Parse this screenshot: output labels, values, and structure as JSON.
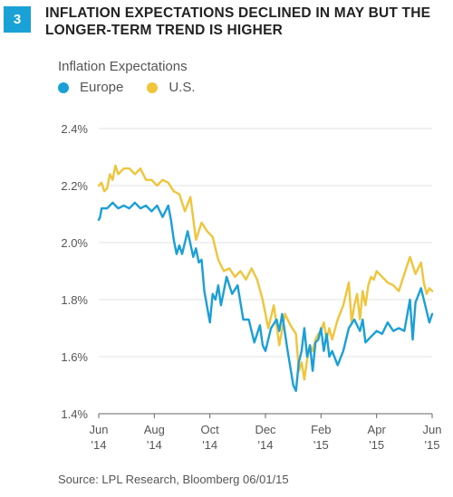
{
  "figure": {
    "number": "3",
    "title_line1": "INFLATION EXPECTATIONS DECLINED IN MAY BUT THE",
    "title_line2": "LONGER-TERM TREND IS HIGHER"
  },
  "source": "Source: LPL Research, Bloomberg   06/01/15",
  "colors": {
    "europe": "#1aa0d8",
    "us": "#f0c53a",
    "grid": "#e3e3e3",
    "axis": "#666666"
  },
  "chart_data": {
    "type": "line",
    "title": "Inflation Expectations",
    "ylim": [
      1.4,
      2.4
    ],
    "y_ticks": [
      {
        "value": 2.4,
        "label": "2.4%"
      },
      {
        "value": 2.2,
        "label": "2.2%"
      },
      {
        "value": 2.0,
        "label": "2.0%"
      },
      {
        "value": 1.8,
        "label": "1.8%"
      },
      {
        "value": 1.6,
        "label": "1.6%"
      },
      {
        "value": 1.4,
        "label": "1.4%"
      }
    ],
    "x_ticks": [
      {
        "pos": 0,
        "month": "Jun",
        "year": "'14"
      },
      {
        "pos": 2,
        "month": "Aug",
        "year": "'14"
      },
      {
        "pos": 4,
        "month": "Oct",
        "year": "'14"
      },
      {
        "pos": 6,
        "month": "Dec",
        "year": "'14"
      },
      {
        "pos": 8,
        "month": "Feb",
        "year": "'15"
      },
      {
        "pos": 10,
        "month": "Apr",
        "year": "'15"
      },
      {
        "pos": 12,
        "month": "Jun",
        "year": "'15"
      }
    ],
    "series": [
      {
        "name": "Europe",
        "color": "#1aa0d8",
        "x": [
          0,
          0.05,
          0.1,
          0.3,
          0.5,
          0.7,
          0.9,
          1.1,
          1.3,
          1.5,
          1.7,
          1.9,
          2.1,
          2.3,
          2.5,
          2.6,
          2.7,
          2.8,
          2.9,
          3.0,
          3.2,
          3.4,
          3.5,
          3.6,
          3.7,
          3.8,
          4.0,
          4.1,
          4.2,
          4.3,
          4.4,
          4.6,
          4.8,
          5.0,
          5.2,
          5.4,
          5.6,
          5.8,
          5.9,
          6.0,
          6.2,
          6.4,
          6.5,
          6.6,
          6.8,
          7.0,
          7.1,
          7.2,
          7.3,
          7.4,
          7.5,
          7.6,
          7.7,
          7.8,
          7.9,
          8.0,
          8.1,
          8.2,
          8.3,
          8.4,
          8.6,
          8.8,
          9.0,
          9.2,
          9.4,
          9.5,
          9.6,
          9.8,
          10.0,
          10.2,
          10.4,
          10.6,
          10.8,
          11.0,
          11.2,
          11.3,
          11.4,
          11.6,
          11.8,
          11.9,
          12.0
        ],
        "y": [
          2.08,
          2.09,
          2.12,
          2.12,
          2.14,
          2.12,
          2.13,
          2.12,
          2.14,
          2.12,
          2.13,
          2.11,
          2.13,
          2.09,
          2.13,
          2.08,
          2.01,
          1.96,
          1.99,
          1.96,
          2.04,
          1.95,
          1.98,
          1.93,
          1.94,
          1.83,
          1.72,
          1.82,
          1.8,
          1.85,
          1.78,
          1.88,
          1.82,
          1.85,
          1.73,
          1.73,
          1.65,
          1.71,
          1.64,
          1.62,
          1.7,
          1.73,
          1.69,
          1.75,
          1.62,
          1.5,
          1.48,
          1.58,
          1.62,
          1.7,
          1.6,
          1.64,
          1.55,
          1.65,
          1.66,
          1.7,
          1.62,
          1.68,
          1.6,
          1.62,
          1.57,
          1.62,
          1.7,
          1.73,
          1.69,
          1.73,
          1.65,
          1.67,
          1.69,
          1.68,
          1.72,
          1.69,
          1.7,
          1.69,
          1.8,
          1.66,
          1.79,
          1.84,
          1.76,
          1.72,
          1.75
        ]
      },
      {
        "name": "U.S.",
        "color": "#f0c53a",
        "x": [
          0,
          0.1,
          0.2,
          0.3,
          0.4,
          0.5,
          0.6,
          0.7,
          0.9,
          1.1,
          1.3,
          1.5,
          1.7,
          1.9,
          2.1,
          2.3,
          2.5,
          2.7,
          2.9,
          3.1,
          3.3,
          3.5,
          3.7,
          3.9,
          4.1,
          4.3,
          4.5,
          4.7,
          4.9,
          5.1,
          5.3,
          5.5,
          5.7,
          5.9,
          6.1,
          6.3,
          6.5,
          6.7,
          6.9,
          7.1,
          7.2,
          7.3,
          7.4,
          7.5,
          7.6,
          7.7,
          7.8,
          7.9,
          8.0,
          8.1,
          8.2,
          8.3,
          8.4,
          8.6,
          8.8,
          9.0,
          9.1,
          9.2,
          9.3,
          9.4,
          9.5,
          9.6,
          9.7,
          9.8,
          9.9,
          10.0,
          10.2,
          10.4,
          10.6,
          10.8,
          11.0,
          11.2,
          11.4,
          11.6,
          11.7,
          11.8,
          11.9,
          12.0
        ],
        "y": [
          2.2,
          2.21,
          2.18,
          2.19,
          2.24,
          2.22,
          2.27,
          2.24,
          2.26,
          2.26,
          2.24,
          2.26,
          2.22,
          2.22,
          2.2,
          2.22,
          2.21,
          2.18,
          2.17,
          2.11,
          2.16,
          2.01,
          2.07,
          2.04,
          2.02,
          1.94,
          1.9,
          1.91,
          1.88,
          1.9,
          1.87,
          1.91,
          1.87,
          1.8,
          1.7,
          1.78,
          1.64,
          1.75,
          1.71,
          1.68,
          1.55,
          1.58,
          1.52,
          1.59,
          1.64,
          1.62,
          1.66,
          1.68,
          1.69,
          1.72,
          1.66,
          1.7,
          1.66,
          1.73,
          1.78,
          1.86,
          1.72,
          1.78,
          1.82,
          1.73,
          1.83,
          1.78,
          1.85,
          1.88,
          1.87,
          1.9,
          1.88,
          1.86,
          1.85,
          1.83,
          1.89,
          1.95,
          1.89,
          1.93,
          1.86,
          1.82,
          1.84,
          1.83
        ]
      }
    ]
  }
}
